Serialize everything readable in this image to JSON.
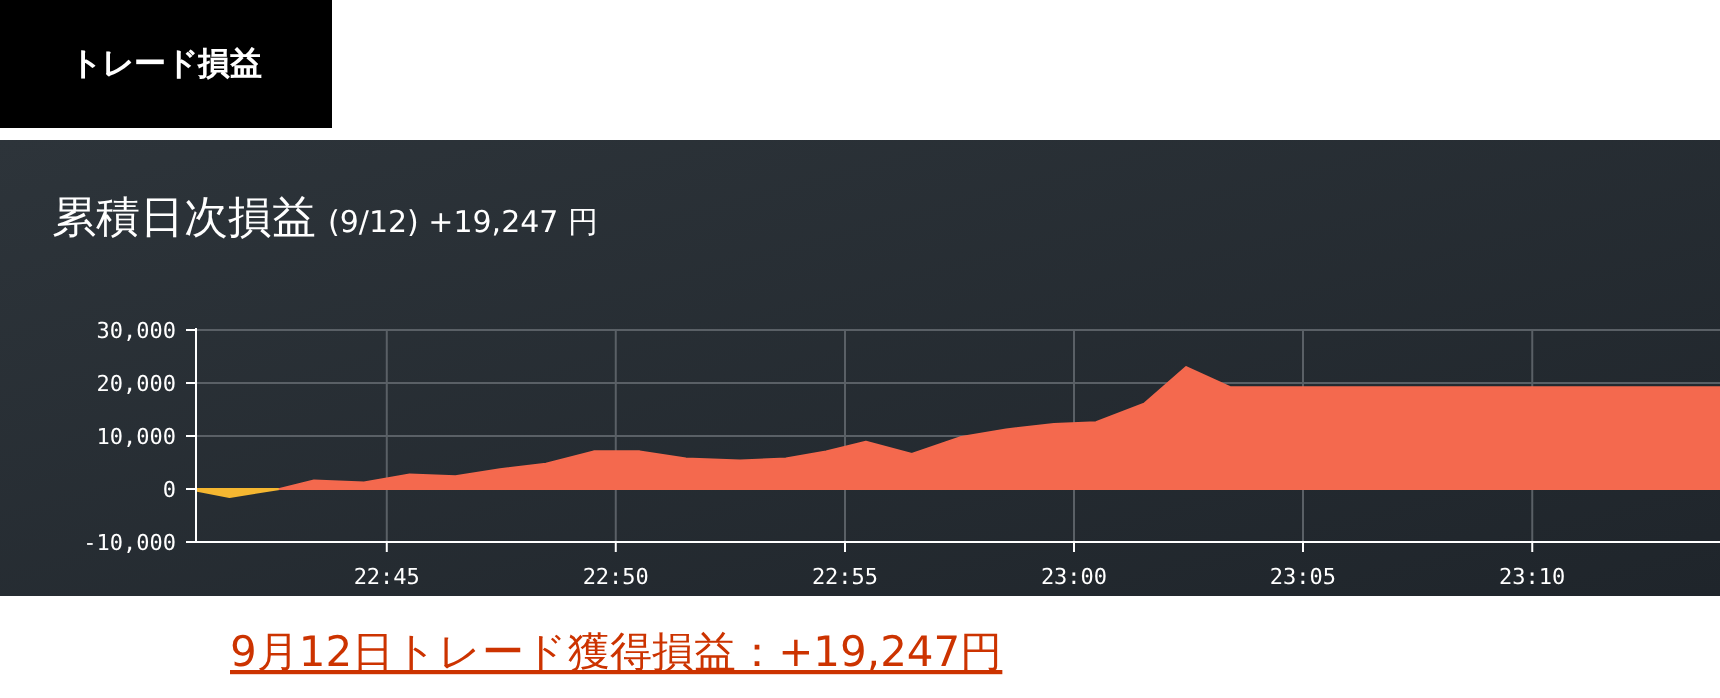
{
  "chart_data": {
    "type": "area",
    "title": "累積日次損益",
    "subtitle": "(9/12) +19,247 円",
    "annotations": [
      "トレード損益",
      "9月12日トレード獲得損益：+19,247円"
    ],
    "xlim": [
      22.6806,
      23.235
    ],
    "xticks": [
      {
        "value": 22.75,
        "label": "22:45"
      },
      {
        "value": 22.8333,
        "label": "22:50"
      },
      {
        "value": 22.9167,
        "label": "22:55"
      },
      {
        "value": 23.0,
        "label": "23:00"
      },
      {
        "value": 23.0833,
        "label": "23:05"
      },
      {
        "value": 23.1667,
        "label": "23:10"
      }
    ],
    "ylim": [
      -10000,
      30000
    ],
    "yticks": [
      {
        "value": 30000,
        "label": "30,000"
      },
      {
        "value": 20000,
        "label": "20,000"
      },
      {
        "value": 10000,
        "label": "10,000"
      },
      {
        "value": 0,
        "label": "0"
      },
      {
        "value": -10000,
        "label": "-10,000"
      }
    ],
    "grid": true,
    "series": [
      {
        "color": "#f5b731",
        "x": [
          22.6806,
          22.6928,
          22.711
        ],
        "values": [
          -300,
          -1500,
          0
        ]
      },
      {
        "color": "#f4694e",
        "x": [
          22.711,
          22.7235,
          22.7417,
          22.7583,
          22.775,
          22.7912,
          22.8079,
          22.8253,
          22.842,
          22.8588,
          22.8785,
          22.8952,
          22.9098,
          22.9243,
          22.941,
          22.9585,
          22.9753,
          22.9927,
          23.008,
          23.0255,
          23.0408,
          23.0568,
          23.235
        ],
        "values": [
          0,
          1600,
          1250,
          2750,
          2400,
          3750,
          4750,
          7100,
          7100,
          5750,
          5400,
          5750,
          7100,
          8900,
          6600,
          9750,
          11250,
          12250,
          12600,
          16100,
          23000,
          19200,
          19200
        ]
      }
    ]
  }
}
